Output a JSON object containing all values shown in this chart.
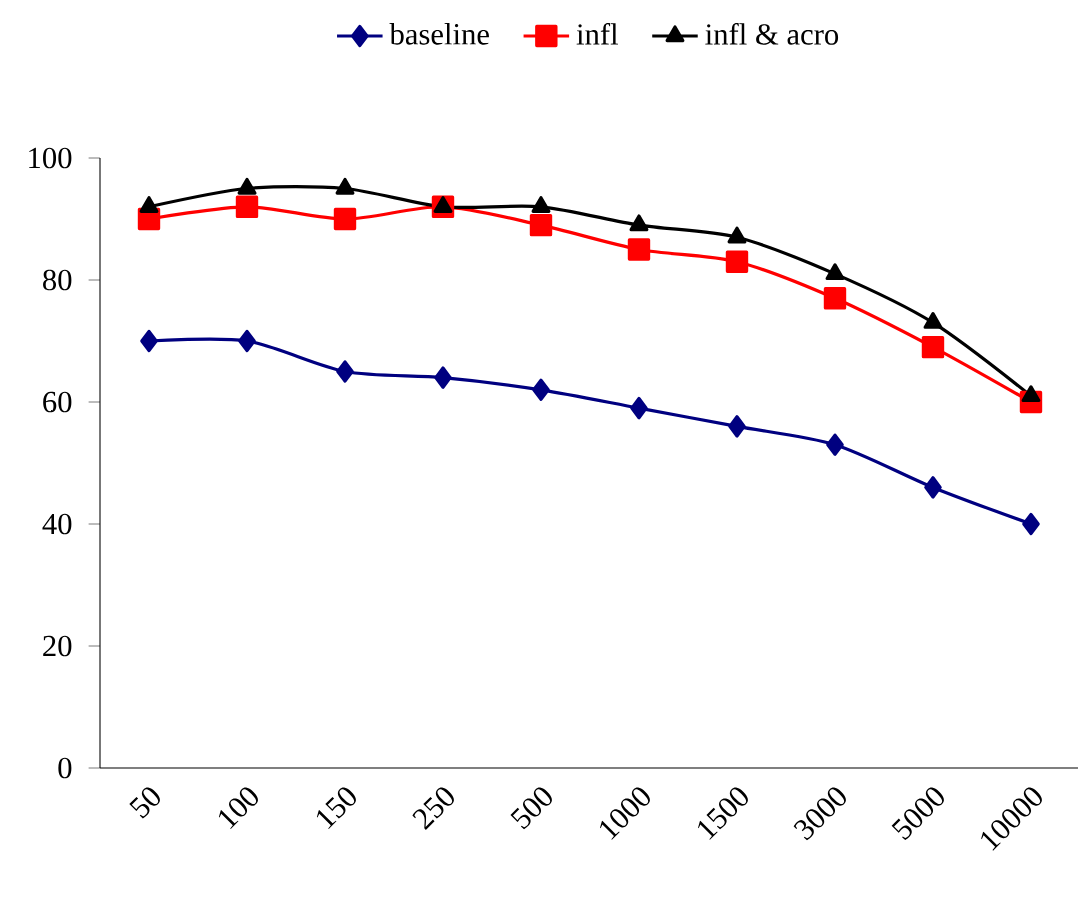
{
  "chart_data": {
    "type": "line",
    "categories": [
      "50",
      "100",
      "150",
      "250",
      "500",
      "1000",
      "1500",
      "3000",
      "5000",
      "10000"
    ],
    "series": [
      {
        "name": "baseline",
        "color": "#000080",
        "marker": "diamond",
        "values": [
          70,
          70,
          65,
          64,
          62,
          59,
          56,
          53,
          46,
          40
        ]
      },
      {
        "name": "infl",
        "color": "#ff0000",
        "marker": "square",
        "values": [
          90,
          92,
          90,
          92,
          89,
          85,
          83,
          77,
          69,
          60
        ]
      },
      {
        "name": "infl & acro",
        "color": "#000000",
        "marker": "triangle",
        "values": [
          92,
          95,
          95,
          92,
          92,
          89,
          87,
          81,
          73,
          61
        ]
      }
    ],
    "ylim": [
      0,
      100
    ],
    "yticks": [
      0,
      20,
      40,
      60,
      80,
      100
    ],
    "legend": "top",
    "line_style": "solid"
  }
}
